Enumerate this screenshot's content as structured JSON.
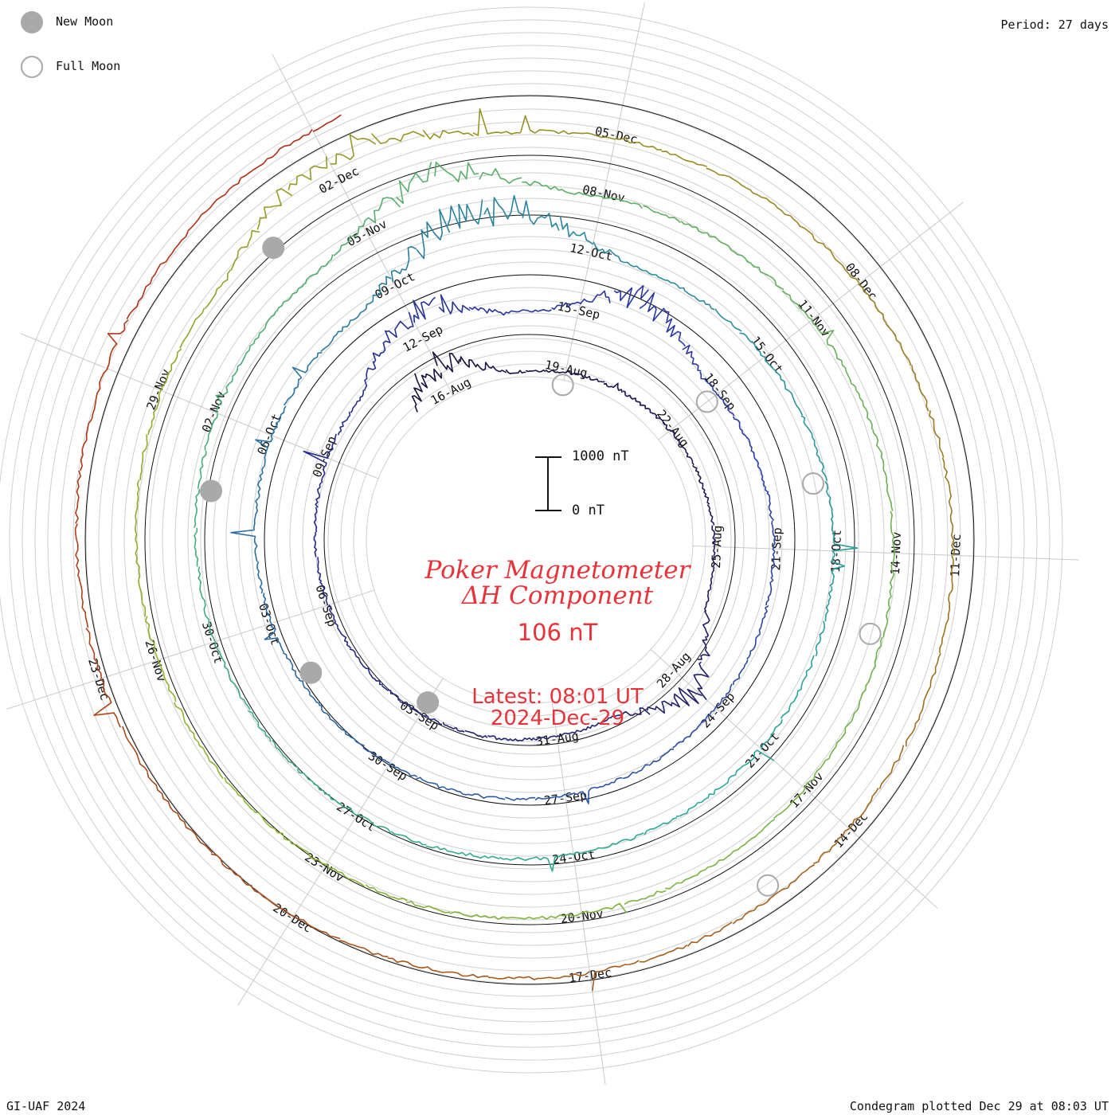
{
  "header": {
    "legend": [
      {
        "label": "New Moon",
        "style": "filled",
        "color": "#a9a9a9"
      },
      {
        "label": "Full Moon",
        "style": "hollow",
        "color": "#a9a9a9"
      }
    ],
    "period": "Period: 27 days"
  },
  "footer": {
    "credit": "GI-UAF 2024",
    "plotted": "Condegram plotted Dec 29 at 08:03 UT"
  },
  "center": {
    "title_line1": "Poker Magnetometer",
    "title_line2": "ΔH Component",
    "value": "106 nT",
    "latest_line1": "Latest: 08:01 UT",
    "latest_line2": "2024-Dec-29",
    "scale_top": "1000 nT",
    "scale_bottom": "0 nT"
  },
  "chart_data": {
    "type": "line",
    "subtype": "spiral condegram (polar time series)",
    "station": "Poker Magnetometer",
    "component": "ΔH Component",
    "units": "nT",
    "period_days": 27,
    "scale_bar_nT": [
      0,
      1000
    ],
    "start_date": "2024-08-15",
    "end_date": "2024-12-29",
    "latest_value_nT": 106,
    "turns": [
      {
        "label_dates": [
          "16-Aug",
          "19-Aug",
          "22-Aug",
          "25-Aug",
          "28-Aug",
          "31-Aug",
          "03-Sep",
          "06-Sep",
          "09-Sep"
        ],
        "color": "#1a0f3d"
      },
      {
        "label_dates": [
          "12-Sep",
          "15-Sep",
          "18-Sep",
          "21-Sep",
          "24-Sep",
          "27-Sep",
          "30-Sep",
          "03-Oct",
          "06-Oct"
        ],
        "color": "#2b3aa8"
      },
      {
        "label_dates": [
          "09-Oct",
          "12-Oct",
          "15-Oct",
          "18-Oct",
          "21-Oct",
          "24-Oct",
          "27-Oct",
          "30-Oct",
          "02-Nov"
        ],
        "color": "#2aa89a"
      },
      {
        "label_dates": [
          "05-Nov",
          "08-Nov",
          "11-Nov",
          "14-Nov",
          "17-Nov",
          "20-Nov",
          "23-Nov",
          "26-Nov",
          "29-Nov"
        ],
        "color": "#8fb52c"
      },
      {
        "label_dates": [
          "02-Dec",
          "05-Dec",
          "08-Dec",
          "11-Dec",
          "14-Dec",
          "17-Dec",
          "20-Dec",
          "23-Dec"
        ],
        "color": "#b22a14"
      }
    ],
    "new_moon_dates": [
      "2024-09-03",
      "2024-10-02",
      "2024-11-01",
      "2024-12-01"
    ],
    "full_moon_dates": [
      "2024-08-19",
      "2024-09-18",
      "2024-10-17",
      "2024-11-15",
      "2024-12-15"
    ],
    "disturbance_days": [
      "2024-08-16",
      "2024-08-28",
      "2024-09-12",
      "2024-09-16",
      "2024-10-10",
      "2024-10-11",
      "2024-11-06",
      "2024-12-02"
    ]
  }
}
